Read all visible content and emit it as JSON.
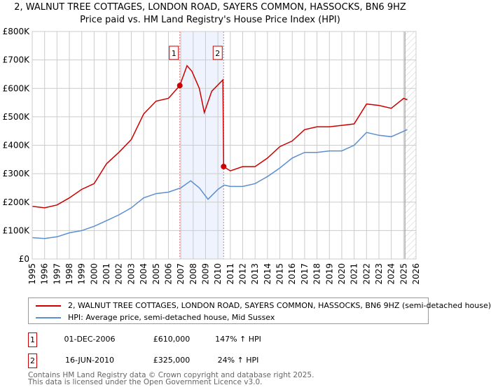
{
  "chart_data": {
    "type": "line",
    "title": "2, WALNUT TREE COTTAGES, LONDON ROAD, SAYERS COMMON, HASSOCKS, BN6 9HZ",
    "subtitle": "Price paid vs. HM Land Registry's House Price Index (HPI)",
    "xlim": [
      1995,
      2026
    ],
    "ylim": [
      0,
      800000
    ],
    "x_ticks": [
      "1995",
      "1996",
      "1997",
      "1998",
      "1999",
      "2000",
      "2001",
      "2002",
      "2003",
      "2004",
      "2005",
      "2006",
      "2007",
      "2008",
      "2009",
      "2010",
      "2011",
      "2012",
      "2013",
      "2014",
      "2015",
      "2016",
      "2017",
      "2018",
      "2019",
      "2020",
      "2021",
      "2022",
      "2023",
      "2024",
      "2025",
      "2026"
    ],
    "y_ticks": [
      {
        "value": 0,
        "label": "£0"
      },
      {
        "value": 100000,
        "label": "£100K"
      },
      {
        "value": 200000,
        "label": "£200K"
      },
      {
        "value": 300000,
        "label": "£300K"
      },
      {
        "value": 400000,
        "label": "£400K"
      },
      {
        "value": 500000,
        "label": "£500K"
      },
      {
        "value": 600000,
        "label": "£600K"
      },
      {
        "value": 700000,
        "label": "£700K"
      },
      {
        "value": 800000,
        "label": "£800K"
      }
    ],
    "grid": true,
    "shaded_range": [
      2006.92,
      2010.46
    ],
    "forecast_hatch_from": 2025.1,
    "series": [
      {
        "name": "2, WALNUT TREE COTTAGES, LONDON ROAD, SAYERS COMMON, HASSOCKS, BN6 9HZ (semi-detached house)",
        "color": "#cc0000",
        "x": [
          1995,
          1996,
          1997,
          1998,
          1999,
          2000,
          2001,
          2002,
          2003,
          2004,
          2005,
          2006,
          2006.92,
          2007.5,
          2007.9,
          2008.5,
          2008.9,
          2009.5,
          2010.4,
          2010.46,
          2011,
          2012,
          2013,
          2014,
          2015,
          2016,
          2017,
          2018,
          2019,
          2020,
          2021,
          2022,
          2023,
          2024,
          2025,
          2025.3
        ],
        "y": [
          185000,
          180000,
          190000,
          215000,
          245000,
          265000,
          335000,
          375000,
          420000,
          510000,
          555000,
          565000,
          610000,
          680000,
          660000,
          600000,
          515000,
          590000,
          630000,
          325000,
          310000,
          325000,
          325000,
          355000,
          395000,
          415000,
          455000,
          465000,
          465000,
          470000,
          475000,
          545000,
          540000,
          530000,
          565000,
          560000
        ]
      },
      {
        "name": "HPI: Average price, semi-detached house, Mid Sussex",
        "color": "#5b8fd0",
        "x": [
          1995,
          1996,
          1997,
          1998,
          1999,
          2000,
          2001,
          2002,
          2003,
          2004,
          2005,
          2006,
          2007,
          2007.8,
          2008.5,
          2009.2,
          2010,
          2010.5,
          2011,
          2012,
          2013,
          2014,
          2015,
          2016,
          2017,
          2018,
          2019,
          2020,
          2021,
          2022,
          2023,
          2024,
          2025.3
        ],
        "y": [
          75000,
          72000,
          78000,
          92000,
          100000,
          115000,
          135000,
          155000,
          180000,
          215000,
          230000,
          235000,
          250000,
          275000,
          250000,
          210000,
          245000,
          260000,
          255000,
          255000,
          265000,
          290000,
          320000,
          355000,
          375000,
          375000,
          380000,
          380000,
          400000,
          445000,
          435000,
          430000,
          455000
        ]
      }
    ],
    "markers": [
      {
        "label": "1",
        "x": 2006.92,
        "y": 610000
      },
      {
        "label": "2",
        "x": 2010.46,
        "y": 325000
      }
    ]
  },
  "legend": [
    {
      "label": "2, WALNUT TREE COTTAGES, LONDON ROAD, SAYERS COMMON, HASSOCKS, BN6 9HZ (semi-detached house)",
      "color": "#cc0000"
    },
    {
      "label": "HPI: Average price, semi-detached house, Mid Sussex",
      "color": "#5b8fd0"
    }
  ],
  "transactions": [
    {
      "num": "1",
      "date": "01-DEC-2006",
      "price": "£610,000",
      "hpi": "147% ↑ HPI"
    },
    {
      "num": "2",
      "date": "16-JUN-2010",
      "price": "£325,000",
      "hpi": "24% ↑ HPI"
    }
  ],
  "footer": {
    "line1": "Contains HM Land Registry data © Crown copyright and database right 2025.",
    "line2": "This data is licensed under the Open Government Licence v3.0."
  }
}
